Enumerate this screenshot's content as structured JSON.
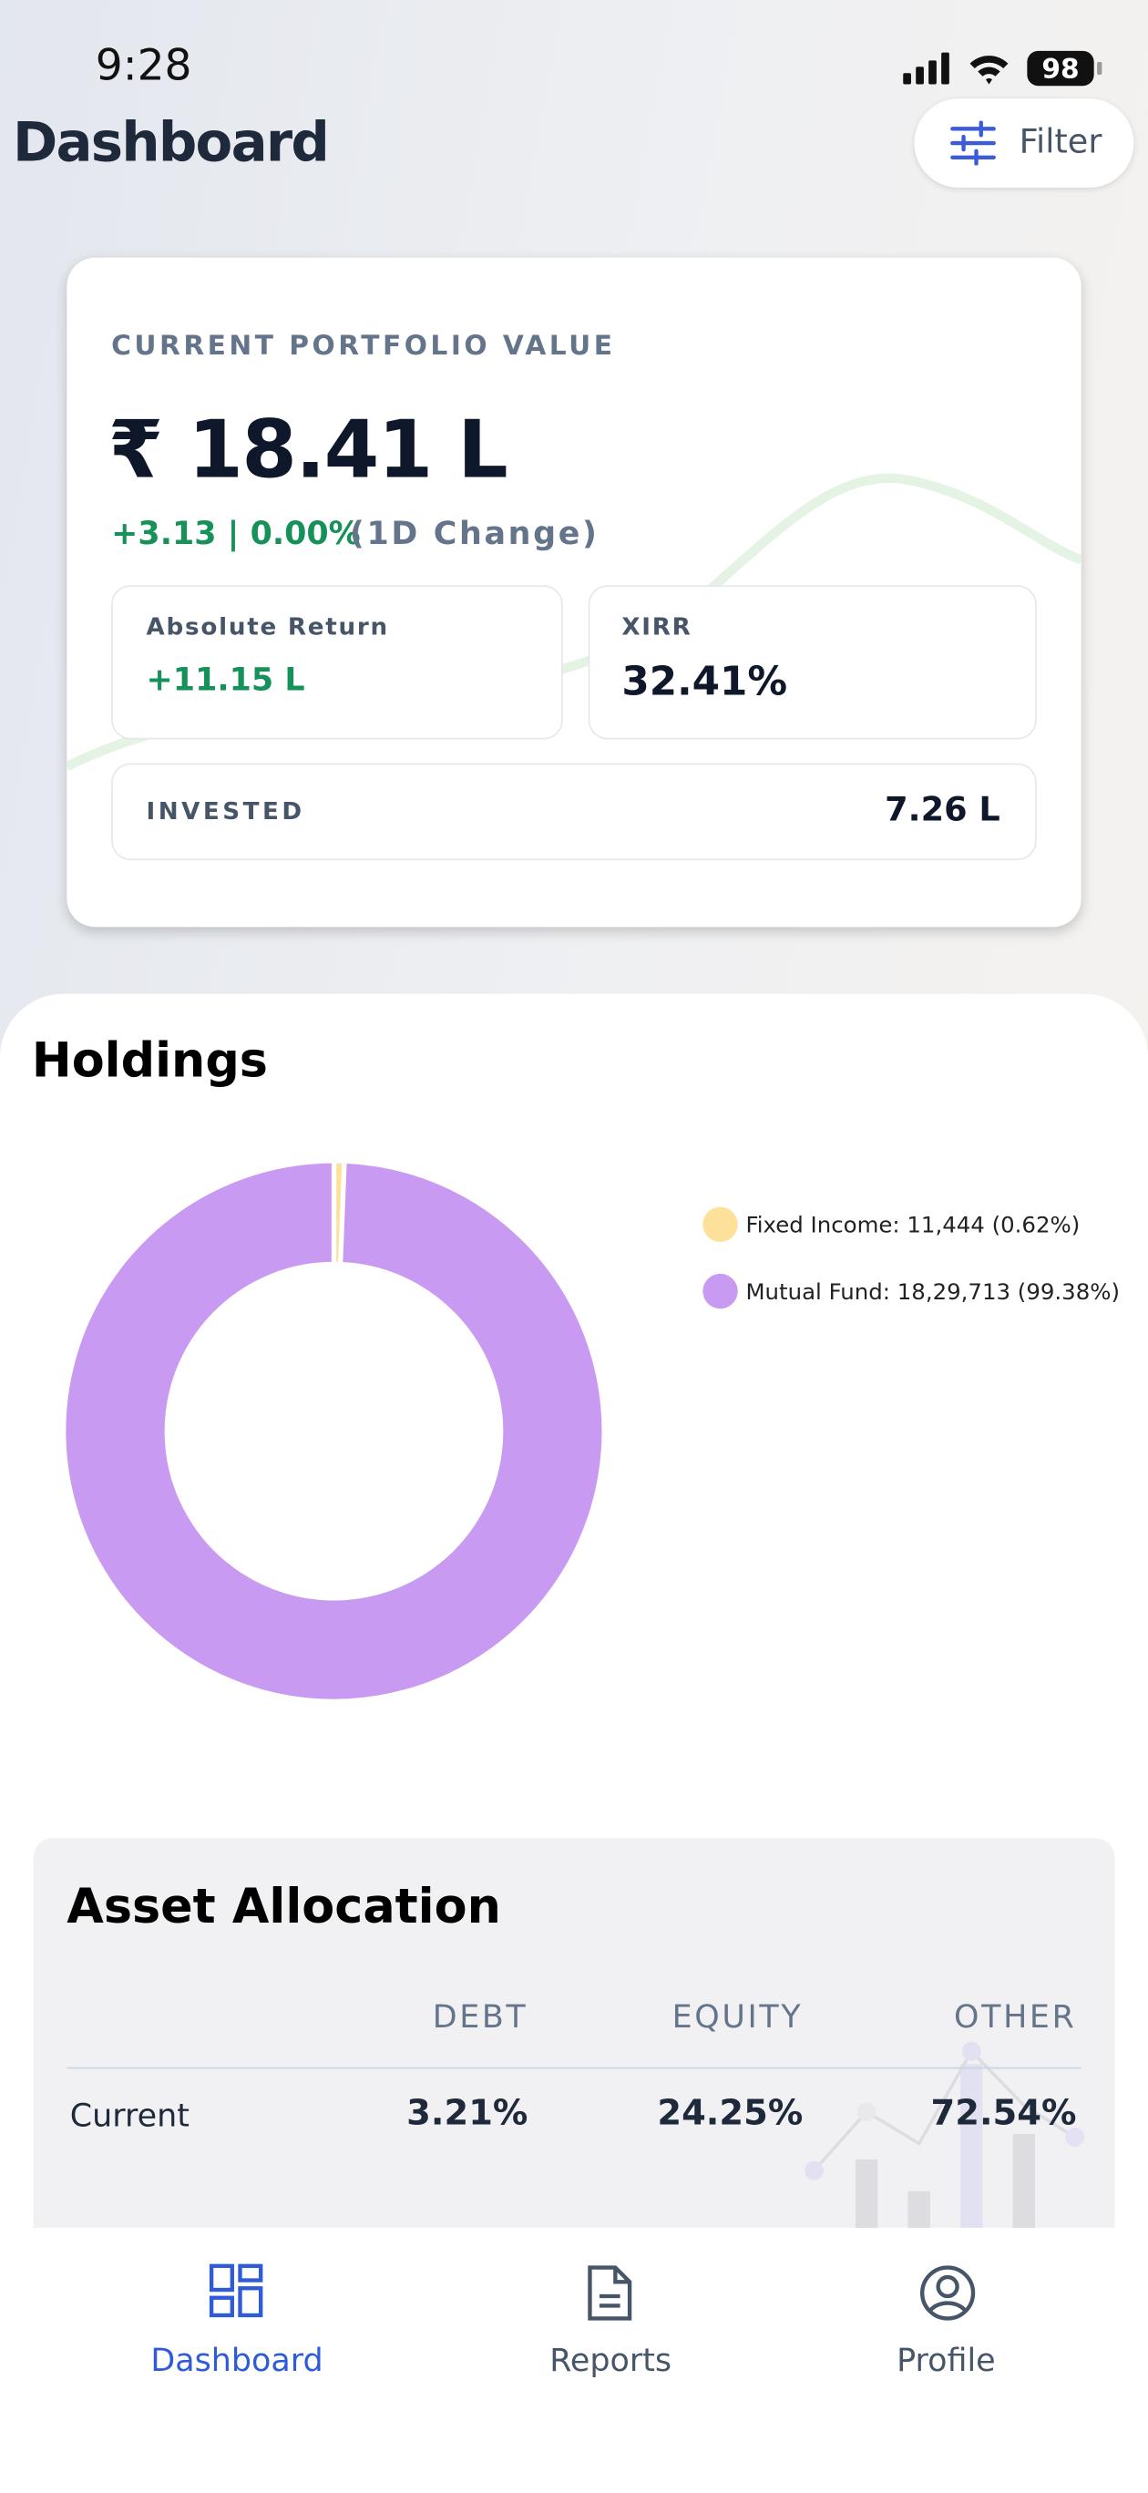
{
  "status_bar": {
    "time": "9:28",
    "battery": "98"
  },
  "header": {
    "title": "Dashboard",
    "filter": "Filter"
  },
  "portfolio": {
    "label": "CURRENT PORTFOLIO VALUE",
    "value": "₹ 18.41 L",
    "change": "+3.13 | 0.00%",
    "change_period": "(1D Change)",
    "absolute_return": {
      "label": "Absolute Return",
      "value": "+11.15 L"
    },
    "xirr": {
      "label": "XIRR",
      "value": "32.41%"
    },
    "invested": {
      "label": "INVESTED",
      "value": "7.26 L"
    }
  },
  "holdings": {
    "title": "Holdings",
    "chart": {
      "type": "pie",
      "items": [
        {
          "label": "Fixed Income: 11,444 (0.62%)",
          "value": 0.62,
          "color": "#fde19a"
        },
        {
          "label": "Mutual Fund: 18,29,713 (99.38%)",
          "value": 99.38,
          "color": "#c89af2"
        }
      ]
    }
  },
  "asset_allocation": {
    "title": "Asset Allocation",
    "columns": [
      "DEBT",
      "EQUITY",
      "OTHER"
    ],
    "rows": [
      [
        "Current",
        "3.21%",
        "24.25%",
        "72.54%"
      ]
    ]
  },
  "tabs": [
    "Dashboard",
    "Reports",
    "Profile"
  ]
}
